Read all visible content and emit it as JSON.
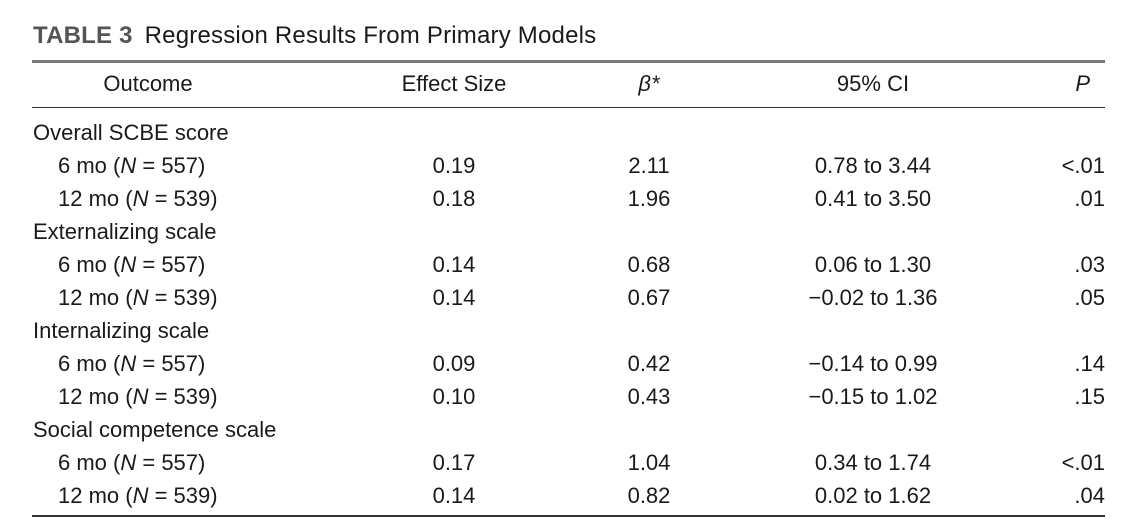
{
  "caption": {
    "table_number": "TABLE 3",
    "title": "Regression Results From Primary Models"
  },
  "headers": {
    "outcome": "Outcome",
    "effect_size": "Effect Size",
    "beta": "β*",
    "ci": "95% CI",
    "p": "P"
  },
  "rows": [
    {
      "outcome": "Overall SCBE score",
      "effect_size": "",
      "beta": "",
      "ci": "",
      "p": ""
    },
    {
      "outcome": "6 mo (N = 557)",
      "effect_size": "0.19",
      "beta": "2.11",
      "ci": "0.78 to 3.44",
      "p": "<.01"
    },
    {
      "outcome": "12 mo (N = 539)",
      "effect_size": "0.18",
      "beta": "1.96",
      "ci": "0.41 to 3.50",
      "p": ".01"
    },
    {
      "outcome": "Externalizing scale",
      "effect_size": "",
      "beta": "",
      "ci": "",
      "p": ""
    },
    {
      "outcome": "6 mo (N = 557)",
      "effect_size": "0.14",
      "beta": "0.68",
      "ci": "0.06 to 1.30",
      "p": ".03"
    },
    {
      "outcome": "12 mo (N = 539)",
      "effect_size": "0.14",
      "beta": "0.67",
      "ci": "−0.02 to 1.36",
      "p": ".05"
    },
    {
      "outcome": "Internalizing scale",
      "effect_size": "",
      "beta": "",
      "ci": "",
      "p": ""
    },
    {
      "outcome": "6 mo (N = 557)",
      "effect_size": "0.09",
      "beta": "0.42",
      "ci": "−0.14 to 0.99",
      "p": ".14"
    },
    {
      "outcome": "12 mo (N = 539)",
      "effect_size": "0.10",
      "beta": "0.43",
      "ci": "−0.15 to 1.02",
      "p": ".15"
    },
    {
      "outcome": "Social competence scale",
      "effect_size": "",
      "beta": "",
      "ci": "",
      "p": ""
    },
    {
      "outcome": "6 mo (N = 557)",
      "effect_size": "0.17",
      "beta": "1.04",
      "ci": "0.34 to 1.74",
      "p": "<.01"
    },
    {
      "outcome": "12 mo (N = 539)",
      "effect_size": "0.14",
      "beta": "0.82",
      "ci": "0.02 to 1.62",
      "p": ".04"
    }
  ]
}
